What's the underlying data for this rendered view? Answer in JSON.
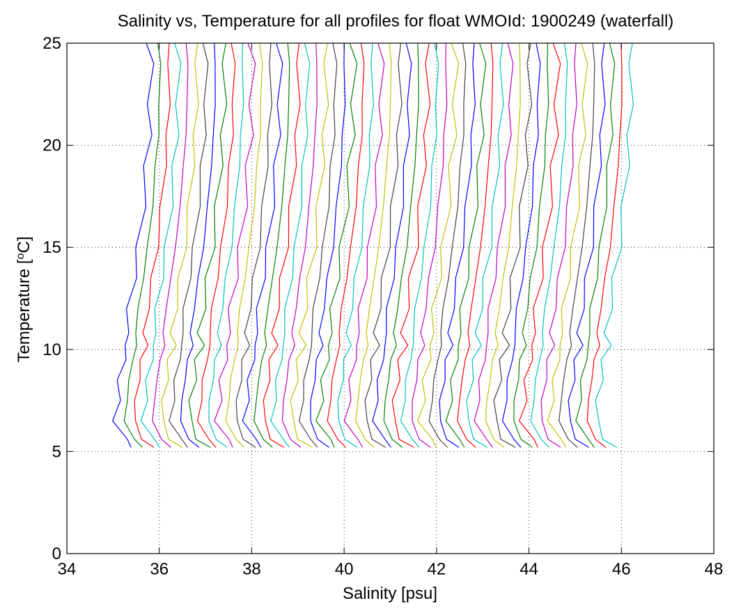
{
  "chart_data": {
    "type": "line",
    "title": "Salinity vs, Temperature for all profiles for float WMOId: 1900249 (waterfall)",
    "xlabel": "Salinity [psu]",
    "ylabel_main": "Temperature [",
    "ylabel_sup": "o",
    "ylabel_tail": "C]",
    "xlim": [
      34,
      48
    ],
    "ylim": [
      0,
      25
    ],
    "xticks": [
      "34",
      "36",
      "38",
      "40",
      "42",
      "44",
      "46",
      "48"
    ],
    "yticks": [
      "0",
      "5",
      "10",
      "15",
      "20",
      "25"
    ],
    "grid": true,
    "grid_style": "dotted",
    "color_cycle": [
      "#0000ff",
      "#008000",
      "#ff0000",
      "#00bfbf",
      "#bf00bf",
      "#bfbf00",
      "#404040"
    ],
    "waterfall": {
      "profile_count": 53,
      "first_base_salinity": 35.0,
      "offset_step_psu": 0.2,
      "temperature_range": [
        5,
        25
      ]
    },
    "series_shape": [
      {
        "t": 5.2,
        "ds": 0.45
      },
      {
        "t": 5.6,
        "ds": 0.25
      },
      {
        "t": 6.5,
        "ds": 0.05
      },
      {
        "t": 7.5,
        "ds": 0.1
      },
      {
        "t": 8.5,
        "ds": 0.15
      },
      {
        "t": 9.5,
        "ds": 0.22
      },
      {
        "t": 10.2,
        "ds": 0.32
      },
      {
        "t": 10.8,
        "ds": 0.28
      },
      {
        "t": 12.0,
        "ds": 0.35
      },
      {
        "t": 13.5,
        "ds": 0.45
      },
      {
        "t": 15.0,
        "ds": 0.55
      },
      {
        "t": 17.0,
        "ds": 0.65
      },
      {
        "t": 19.0,
        "ds": 0.72
      },
      {
        "t": 20.5,
        "ds": 0.78
      },
      {
        "t": 22.0,
        "ds": 0.8
      },
      {
        "t": 24.0,
        "ds": 0.82
      },
      {
        "t": 25.0,
        "ds": 0.78
      }
    ]
  }
}
